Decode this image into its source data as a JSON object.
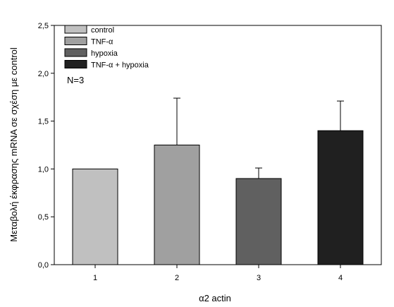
{
  "chart_data": {
    "type": "bar",
    "categories": [
      "1",
      "2",
      "3",
      "4"
    ],
    "values": [
      1.0,
      1.25,
      0.9,
      1.4
    ],
    "errors": [
      0,
      0.49,
      0.11,
      0.31
    ],
    "bar_colors": [
      "#c0c0c0",
      "#a0a0a0",
      "#606060",
      "#202020"
    ],
    "legend": [
      {
        "label": "control",
        "color": "#c0c0c0"
      },
      {
        "label": "TNF-α",
        "color": "#a0a0a0"
      },
      {
        "label": "hypoxia",
        "color": "#606060"
      },
      {
        "label": "TNF-α + hypoxia",
        "color": "#202020"
      }
    ],
    "legend_position": "top-left",
    "xlabel": "α2 actin",
    "ylabel": "Μεταβολή έκφρασης mRNA σε σχέση με control",
    "ylim": [
      0,
      2.5
    ],
    "yticks": [
      "0,0",
      "0,5",
      "1,0",
      "1,5",
      "2,0",
      "2,5"
    ],
    "ytick_values": [
      0,
      0.5,
      1.0,
      1.5,
      2.0,
      2.5
    ],
    "annotation": "N=3",
    "grid": false
  }
}
